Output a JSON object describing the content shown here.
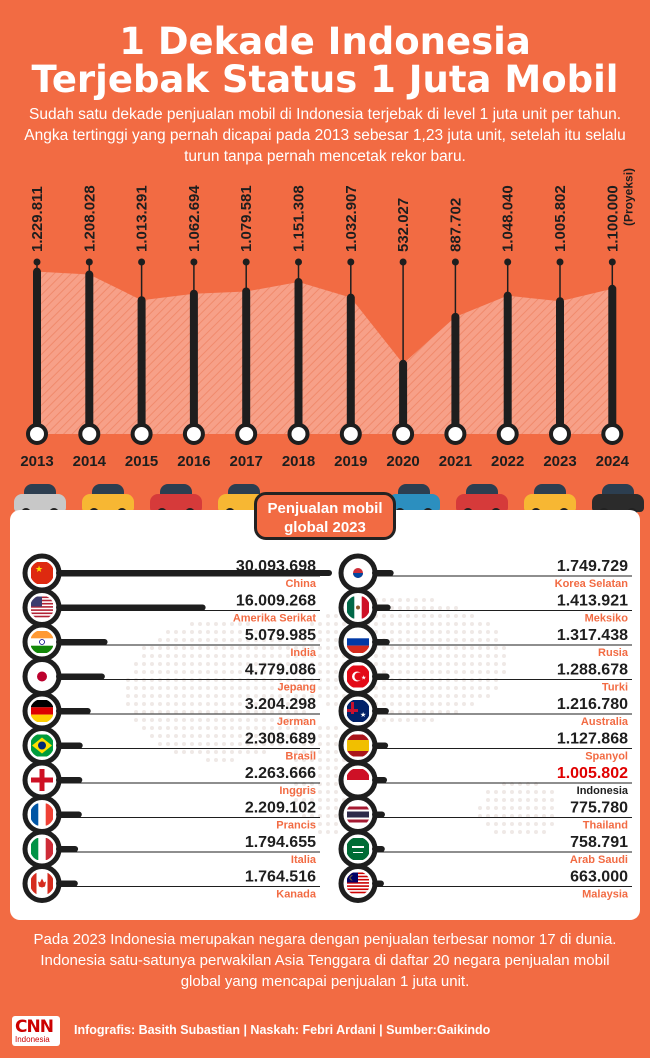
{
  "title_line1": "1 Dekade Indonesia",
  "title_line2": "Terjebak Status 1 Juta Mobil",
  "intro": "Sudah satu dekade penjualan mobil di Indonesia terjebak di level 1 juta unit per tahun. Angka tertinggi yang pernah dicapai pada 2013 sebesar 1,23 juta unit, setelah itu selalu turun tanpa pernah mencetak rekor baru.",
  "chart_data": [
    {
      "type": "bar",
      "title": "",
      "categories": [
        "2013",
        "2014",
        "2015",
        "2016",
        "2017",
        "2018",
        "2019",
        "2020",
        "2021",
        "2022",
        "2023",
        "2024"
      ],
      "values": [
        1229811,
        1208028,
        1013291,
        1062694,
        1079581,
        1151308,
        1032907,
        532027,
        887702,
        1048040,
        1005802,
        1100000
      ],
      "value_labels": [
        "1.229.811",
        "1.208.028",
        "1.013.291",
        "1.062.694",
        "1.079.581",
        "1.151.308",
        "1.032.907",
        "532.027",
        "887.702",
        "1.048.040",
        "1.005.802",
        "1.100.000"
      ],
      "projection_note": "(Proyeksi)",
      "projection_index": 11
    },
    {
      "type": "bar",
      "title": "Penjualan mobil global 2023",
      "categories": [
        "China",
        "Amerika Serikat",
        "India",
        "Jepang",
        "Jerman",
        "Brasil",
        "Inggris",
        "Prancis",
        "Italia",
        "Kanada",
        "Korea Selatan",
        "Meksiko",
        "Rusia",
        "Turki",
        "Australia",
        "Spanyol",
        "Indonesia",
        "Thailand",
        "Arab Saudi",
        "Malaysia"
      ],
      "values": [
        30093698,
        16009268,
        5079985,
        4779086,
        3204298,
        2308689,
        2263666,
        2209102,
        1794655,
        1764516,
        1749729,
        1413921,
        1317438,
        1288678,
        1216780,
        1127868,
        1005802,
        775780,
        758791,
        663000
      ],
      "value_labels": [
        "30.093.698",
        "16.009.268",
        "5.079.985",
        "4.779.086",
        "3.204.298",
        "2.308.689",
        "2.263.666",
        "2.209.102",
        "1.794.655",
        "1.764.516",
        "1.749.729",
        "1.413.921",
        "1.317.438",
        "1.288.678",
        "1.216.780",
        "1.127.868",
        "1.005.802",
        "775.780",
        "758.791",
        "663.000"
      ],
      "highlight": "Indonesia"
    }
  ],
  "flag_icons": [
    "china-flag-icon",
    "usa-flag-icon",
    "india-flag-icon",
    "japan-flag-icon",
    "germany-flag-icon",
    "brazil-flag-icon",
    "england-flag-icon",
    "france-flag-icon",
    "italy-flag-icon",
    "canada-flag-icon",
    "south-korea-flag-icon",
    "mexico-flag-icon",
    "russia-flag-icon",
    "turkey-flag-icon",
    "australia-flag-icon",
    "spain-flag-icon",
    "indonesia-flag-icon",
    "thailand-flag-icon",
    "saudi-arabia-flag-icon",
    "malaysia-flag-icon"
  ],
  "colors": {
    "background": "#f26b43",
    "accent": "#f26b43",
    "dark": "#1e1e1e",
    "highlight": "#e00000",
    "area": "#f7a088"
  },
  "bottom_text": "Pada 2023 Indonesia merupakan negara dengan penjualan terbesar nomor 17 di dunia. Indonesia satu-satunya perwakilan Asia Tenggara di daftar 20 negara penjualan mobil global yang mencapai penjualan 1 juta unit.",
  "credit": {
    "logo": "CNN",
    "logo_sub": "Indonesia",
    "text": "Infografis: Basith Subastian | Naskah: Febri Ardani | Sumber:Gaikindo"
  }
}
